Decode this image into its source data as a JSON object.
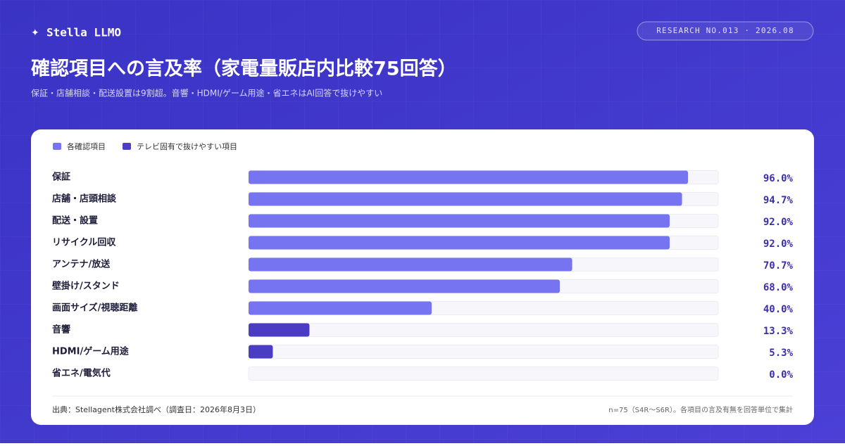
{
  "brand": "Stella LLMO",
  "badge": "RESEARCH NO.013 · 2026.08",
  "chart_data": {
    "type": "bar",
    "orientation": "horizontal",
    "title": "確認項目への言及率（家電量販店内比較75回答）",
    "subtitle": "保証・店舗相談・配送設置は9割超。音響・HDMI/ゲーム用途・省エネはAI回答で抜けやすい",
    "categories": [
      "保証",
      "店舗・店頭相談",
      "配送・設置",
      "リサイクル回収",
      "アンテナ/放送",
      "壁掛け/スタンド",
      "画面サイズ/視聴距離",
      "音響",
      "HDMI/ゲーム用途",
      "省エネ/電気代"
    ],
    "series": [
      {
        "name": "各確認項目",
        "color": "#7674f0",
        "values": [
          96.0,
          94.7,
          92.0,
          92.0,
          70.7,
          68.0,
          40.0,
          null,
          null,
          null
        ],
        "value_labels": [
          "96.0%",
          "94.7%",
          "92.0%",
          "92.0%",
          "70.7%",
          "68.0%",
          "40.0%",
          null,
          null,
          null
        ]
      },
      {
        "name": "テレビ固有で抜けやすい項目",
        "color": "#4b3cc4",
        "values": [
          null,
          null,
          null,
          null,
          null,
          null,
          null,
          13.3,
          5.3,
          0.0
        ],
        "value_labels": [
          null,
          null,
          null,
          null,
          null,
          null,
          null,
          "13.3%",
          "5.3%",
          "0.0%"
        ]
      }
    ],
    "xlim": [
      0,
      100
    ],
    "legend": "top-left",
    "source": "出典：Stellagent株式会社調べ（調査日：2026年8月3日）",
    "note": "n=75（S4R〜S6R）。各項目の言及有無を回答単位で集計"
  }
}
